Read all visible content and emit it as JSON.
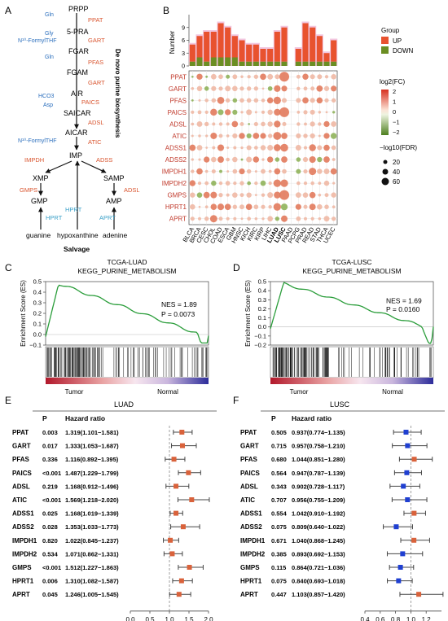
{
  "panels": {
    "a": "A",
    "b": "B",
    "c": "C",
    "d": "D",
    "e": "E",
    "f": "F"
  },
  "pathway": {
    "nodes": [
      "PRPP",
      "5-PRA",
      "FGAR",
      "FGAM",
      "AIR",
      "SAICAR",
      "AICAR",
      "IMP",
      "XMP",
      "SAMP",
      "GMP",
      "AMP"
    ],
    "salvage_sources": [
      "guanine",
      "hypoxanthine",
      "adenine"
    ],
    "enzymes": [
      "PPAT",
      "GART",
      "PFAS",
      "GART",
      "PAICS",
      "ADSL",
      "ATIC",
      "IMPDH",
      "ADSS",
      "GMPS",
      "ADSL",
      "HPRT",
      "HPRT",
      "APRT"
    ],
    "cofactors": [
      "Gln",
      "Gly",
      "N¹⁰-FormylTHF",
      "Gln",
      "HCO3",
      "Asp",
      "N¹⁰-FormylTHF"
    ],
    "de_novo_label": "De novo purine biosynthesis",
    "salvage_label": "Salvage"
  },
  "chart_data": [
    {
      "id": "B",
      "type": "bar+bubble",
      "ylabel": "Number",
      "yticks": [
        0,
        3,
        6,
        9
      ],
      "legend_title": "Group",
      "legend": [
        "UP",
        "DOWN"
      ],
      "colors": {
        "UP": "#e8522f",
        "DOWN": "#6b8e23"
      },
      "cancers": [
        "BLCA",
        "BRCA",
        "CESC",
        "CHOL",
        "COAD",
        "ESCA",
        "GBM",
        "HNSC",
        "KICH",
        "KIRC",
        "KIRP",
        "LIHC",
        "LUAD",
        "LUSC",
        "PAAD",
        "PCPG",
        "PRAD",
        "READ",
        "STAD",
        "THCA",
        "UCEC"
      ],
      "up": [
        4,
        5,
        7,
        6,
        8,
        7,
        5,
        5,
        4,
        4,
        3,
        3,
        7,
        8,
        0,
        3,
        9,
        8,
        6,
        2,
        5
      ],
      "down": [
        1,
        2,
        1,
        2,
        2,
        2,
        2,
        1,
        1,
        1,
        1,
        1,
        1,
        1,
        0,
        1,
        1,
        1,
        1,
        1,
        1
      ],
      "genes": [
        "PPAT",
        "GART",
        "PFAS",
        "PAICS",
        "ADSL",
        "ATIC",
        "ADSS1",
        "ADSS2",
        "IMPDH1",
        "IMPDH2",
        "GMPS",
        "HPRT1",
        "APRT"
      ],
      "color_legend_title": "log2(FC)",
      "color_ticks": [
        "2",
        "1",
        "0",
        "−1",
        "−2"
      ],
      "size_legend_title": "−log10(FDR)",
      "size_ticks": [
        "20",
        "40",
        "60"
      ]
    },
    {
      "id": "C",
      "type": "line",
      "title": "TCGA-LUAD",
      "subtitle": "KEGG_PURINE_METABOLISM",
      "ylabel": "Enrichment Score (ES)",
      "yticks": [
        "0.5",
        "0.4",
        "0.3",
        "0.2",
        "0.1",
        "0.0",
        "−0.1"
      ],
      "ylim": [
        -0.1,
        0.5
      ],
      "nes": "NES = 1.89",
      "p": "P = 0.0073",
      "left_label": "Tumor",
      "right_label": "Normal"
    },
    {
      "id": "D",
      "type": "line",
      "title": "TCGA-LUSC",
      "subtitle": "KEGG_PURINE_METABOLISM",
      "ylabel": "Enrichment Score (ES)",
      "yticks": [
        "0.5",
        "0.4",
        "0.3",
        "0.2",
        "0.1",
        "0.0",
        "−0.1",
        "−0.2"
      ],
      "ylim": [
        -0.2,
        0.5
      ],
      "nes": "NES = 1.69",
      "p": "P = 0.0160",
      "left_label": "Tumor",
      "right_label": "Normal"
    },
    {
      "id": "E",
      "type": "forest",
      "title": "LUAD",
      "col_p": "P",
      "col_hr": "Hazard ratio",
      "xlabel": "Hazard ratio",
      "xticks": [
        "0.0",
        "0.5",
        "1.0",
        "1.5",
        "2.0"
      ],
      "xlim": [
        0,
        2
      ],
      "rows": [
        {
          "gene": "PPAT",
          "p": "0.003",
          "hr_text": "1.319(1.101−1.581)",
          "hr": 1.319,
          "lo": 1.101,
          "hi": 1.581
        },
        {
          "gene": "GART",
          "p": "0.017",
          "hr_text": "1.333(1.053−1.687)",
          "hr": 1.333,
          "lo": 1.053,
          "hi": 1.687
        },
        {
          "gene": "PFAS",
          "p": "0.336",
          "hr_text": "1.116(0.892−1.395)",
          "hr": 1.116,
          "lo": 0.892,
          "hi": 1.395
        },
        {
          "gene": "PAICS",
          "p": "<0.001",
          "hr_text": "1.487(1.229−1.799)",
          "hr": 1.487,
          "lo": 1.229,
          "hi": 1.799
        },
        {
          "gene": "ADSL",
          "p": "0.219",
          "hr_text": "1.168(0.912−1.496)",
          "hr": 1.168,
          "lo": 0.912,
          "hi": 1.496
        },
        {
          "gene": "ATIC",
          "p": "<0.001",
          "hr_text": "1.569(1.218−2.020)",
          "hr": 1.569,
          "lo": 1.218,
          "hi": 2.02
        },
        {
          "gene": "ADSS1",
          "p": "0.025",
          "hr_text": "1.168(1.019−1.339)",
          "hr": 1.168,
          "lo": 1.019,
          "hi": 1.339
        },
        {
          "gene": "ADSS2",
          "p": "0.028",
          "hr_text": "1.353(1.033−1.773)",
          "hr": 1.353,
          "lo": 1.033,
          "hi": 1.773
        },
        {
          "gene": "IMPDH1",
          "p": "0.820",
          "hr_text": "1.022(0.845−1.237)",
          "hr": 1.022,
          "lo": 0.845,
          "hi": 1.237
        },
        {
          "gene": "IMPDH2",
          "p": "0.534",
          "hr_text": "1.071(0.862−1.331)",
          "hr": 1.071,
          "lo": 0.862,
          "hi": 1.331
        },
        {
          "gene": "GMPS",
          "p": "<0.001",
          "hr_text": "1.512(1.227−1.863)",
          "hr": 1.512,
          "lo": 1.227,
          "hi": 1.863
        },
        {
          "gene": "HPRT1",
          "p": "0.006",
          "hr_text": "1.310(1.082−1.587)",
          "hr": 1.31,
          "lo": 1.082,
          "hi": 1.587
        },
        {
          "gene": "APRT",
          "p": "0.045",
          "hr_text": "1.246(1.005−1.545)",
          "hr": 1.246,
          "lo": 1.005,
          "hi": 1.545
        }
      ]
    },
    {
      "id": "F",
      "type": "forest",
      "title": "LUSC",
      "col_p": "P",
      "col_hr": "Hazard ratio",
      "xlabel": "Hazard ratio",
      "xticks": [
        "0.4",
        "0.6",
        "0.8",
        "1.0",
        "1.2"
      ],
      "xlim": [
        0.4,
        1.4
      ],
      "rows": [
        {
          "gene": "PPAT",
          "p": "0.505",
          "hr_text": "0.937(0.774−1.135)",
          "hr": 0.937,
          "lo": 0.774,
          "hi": 1.135
        },
        {
          "gene": "GART",
          "p": "0.715",
          "hr_text": "0.957(0.758−1.210)",
          "hr": 0.957,
          "lo": 0.758,
          "hi": 1.21
        },
        {
          "gene": "PFAS",
          "p": "0.680",
          "hr_text": "1.044(0.851−1.280)",
          "hr": 1.044,
          "lo": 0.851,
          "hi": 1.28
        },
        {
          "gene": "PAICS",
          "p": "0.564",
          "hr_text": "0.947(0.787−1.139)",
          "hr": 0.947,
          "lo": 0.787,
          "hi": 1.139
        },
        {
          "gene": "ADSL",
          "p": "0.343",
          "hr_text": "0.902(0.728−1.117)",
          "hr": 0.902,
          "lo": 0.728,
          "hi": 1.117
        },
        {
          "gene": "ATIC",
          "p": "0.707",
          "hr_text": "0.956(0.755−1.209)",
          "hr": 0.956,
          "lo": 0.755,
          "hi": 1.209
        },
        {
          "gene": "ADSS1",
          "p": "0.554",
          "hr_text": "1.042(0.910−1.192)",
          "hr": 1.042,
          "lo": 0.91,
          "hi": 1.192
        },
        {
          "gene": "ADSS2",
          "p": "0.075",
          "hr_text": "0.809(0.640−1.022)",
          "hr": 0.809,
          "lo": 0.64,
          "hi": 1.022
        },
        {
          "gene": "IMPDH1",
          "p": "0.671",
          "hr_text": "1.040(0.868−1.245)",
          "hr": 1.04,
          "lo": 0.868,
          "hi": 1.245
        },
        {
          "gene": "IMPDH2",
          "p": "0.385",
          "hr_text": "0.893(0.692−1.153)",
          "hr": 0.893,
          "lo": 0.692,
          "hi": 1.153
        },
        {
          "gene": "GMPS",
          "p": "0.115",
          "hr_text": "0.864(0.721−1.036)",
          "hr": 0.864,
          "lo": 0.721,
          "hi": 1.036
        },
        {
          "gene": "HPRT1",
          "p": "0.075",
          "hr_text": "0.840(0.693−1.018)",
          "hr": 0.84,
          "lo": 0.693,
          "hi": 1.018
        },
        {
          "gene": "APRT",
          "p": "0.447",
          "hr_text": "1.103(0.857−1.420)",
          "hr": 1.103,
          "lo": 0.857,
          "hi": 1.42
        }
      ]
    }
  ]
}
